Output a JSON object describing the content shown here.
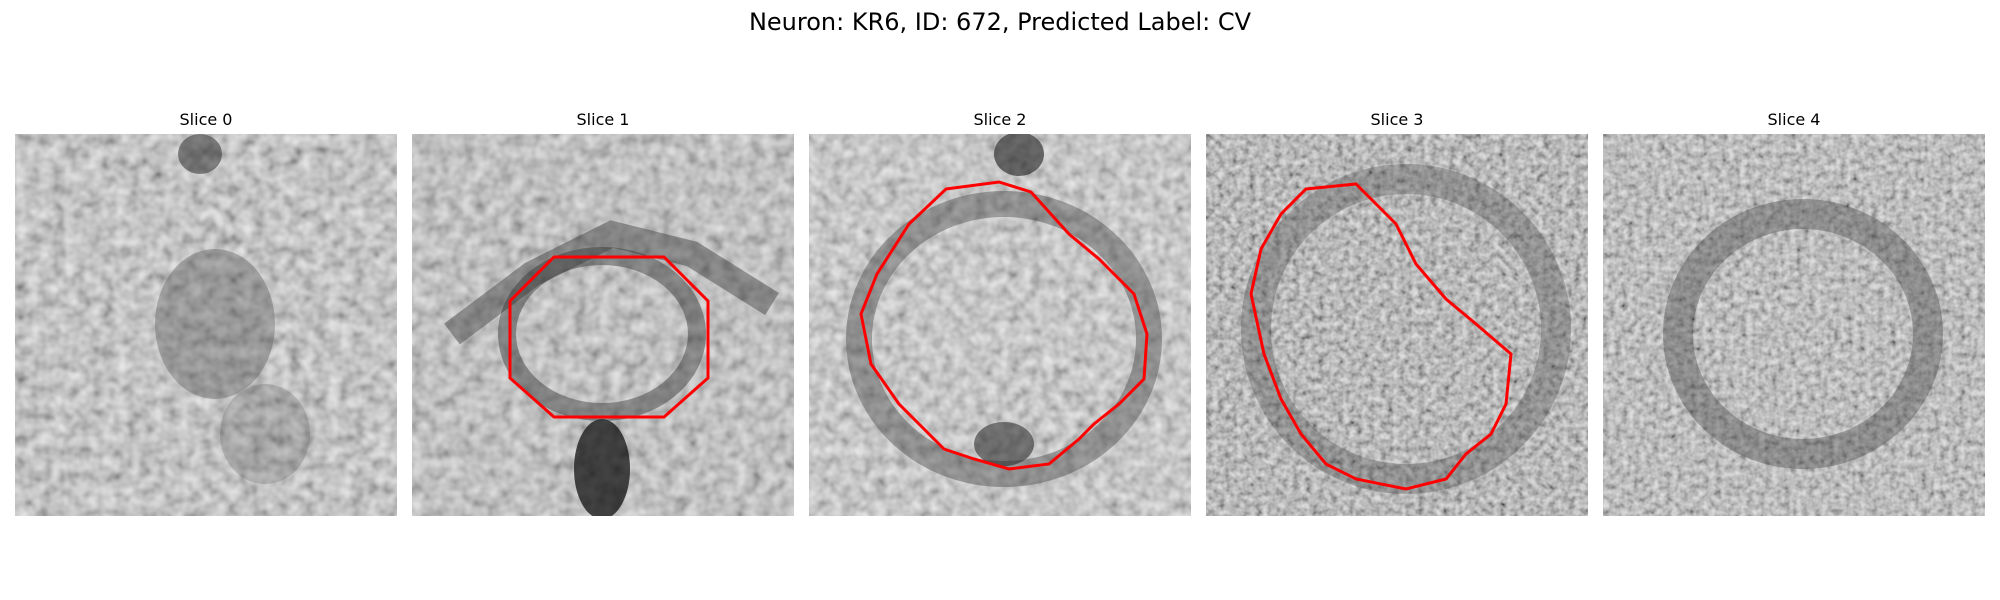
{
  "figure": {
    "title": "Neuron: KR6, ID: 672, Predicted Label: CV"
  },
  "panels": [
    {
      "title": "Slice 0",
      "has_contour": false
    },
    {
      "title": "Slice 1",
      "has_contour": true
    },
    {
      "title": "Slice 2",
      "has_contour": true
    },
    {
      "title": "Slice 3",
      "has_contour": true
    },
    {
      "title": "Slice 4",
      "has_contour": false
    }
  ],
  "colors": {
    "contour": "#ff0000",
    "background": "#ffffff"
  }
}
